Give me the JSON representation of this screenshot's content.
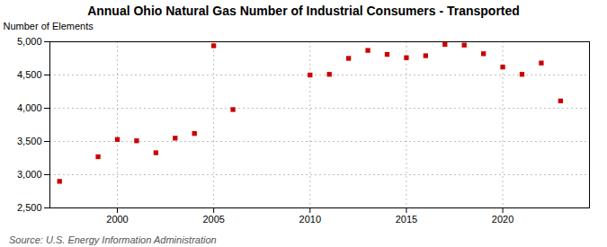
{
  "chart_data": {
    "type": "scatter",
    "title": "Annual Ohio Natural Gas Number of Industrial Consumers - Transported",
    "ylabel": "Number of Elements",
    "source": "Source: U.S. Energy Information Administration",
    "x": [
      1997,
      1999,
      2000,
      2001,
      2002,
      2003,
      2004,
      2005,
      2006,
      2010,
      2011,
      2012,
      2013,
      2014,
      2015,
      2016,
      2017,
      2018,
      2019,
      2020,
      2021,
      2022,
      2023
    ],
    "values": [
      2900,
      3270,
      3530,
      3510,
      3330,
      3550,
      3620,
      4940,
      3980,
      4500,
      4510,
      4750,
      4870,
      4810,
      4760,
      4790,
      4960,
      4950,
      4820,
      4620,
      4510,
      4680,
      4110
    ],
    "color": "#cc0000",
    "marker": "square",
    "xlim": [
      1996.5,
      2024.5
    ],
    "ylim": [
      2500,
      5000
    ],
    "xticks": [
      2000,
      2005,
      2010,
      2015,
      2020
    ],
    "yticks": [
      {
        "value": 2500,
        "label": "2,500"
      },
      {
        "value": 3000,
        "label": "3,000"
      },
      {
        "value": 3500,
        "label": "3,500"
      },
      {
        "value": 4000,
        "label": "4,000"
      },
      {
        "value": 4500,
        "label": "4,500"
      },
      {
        "value": 5000,
        "label": "5,000"
      }
    ],
    "grid": true
  }
}
